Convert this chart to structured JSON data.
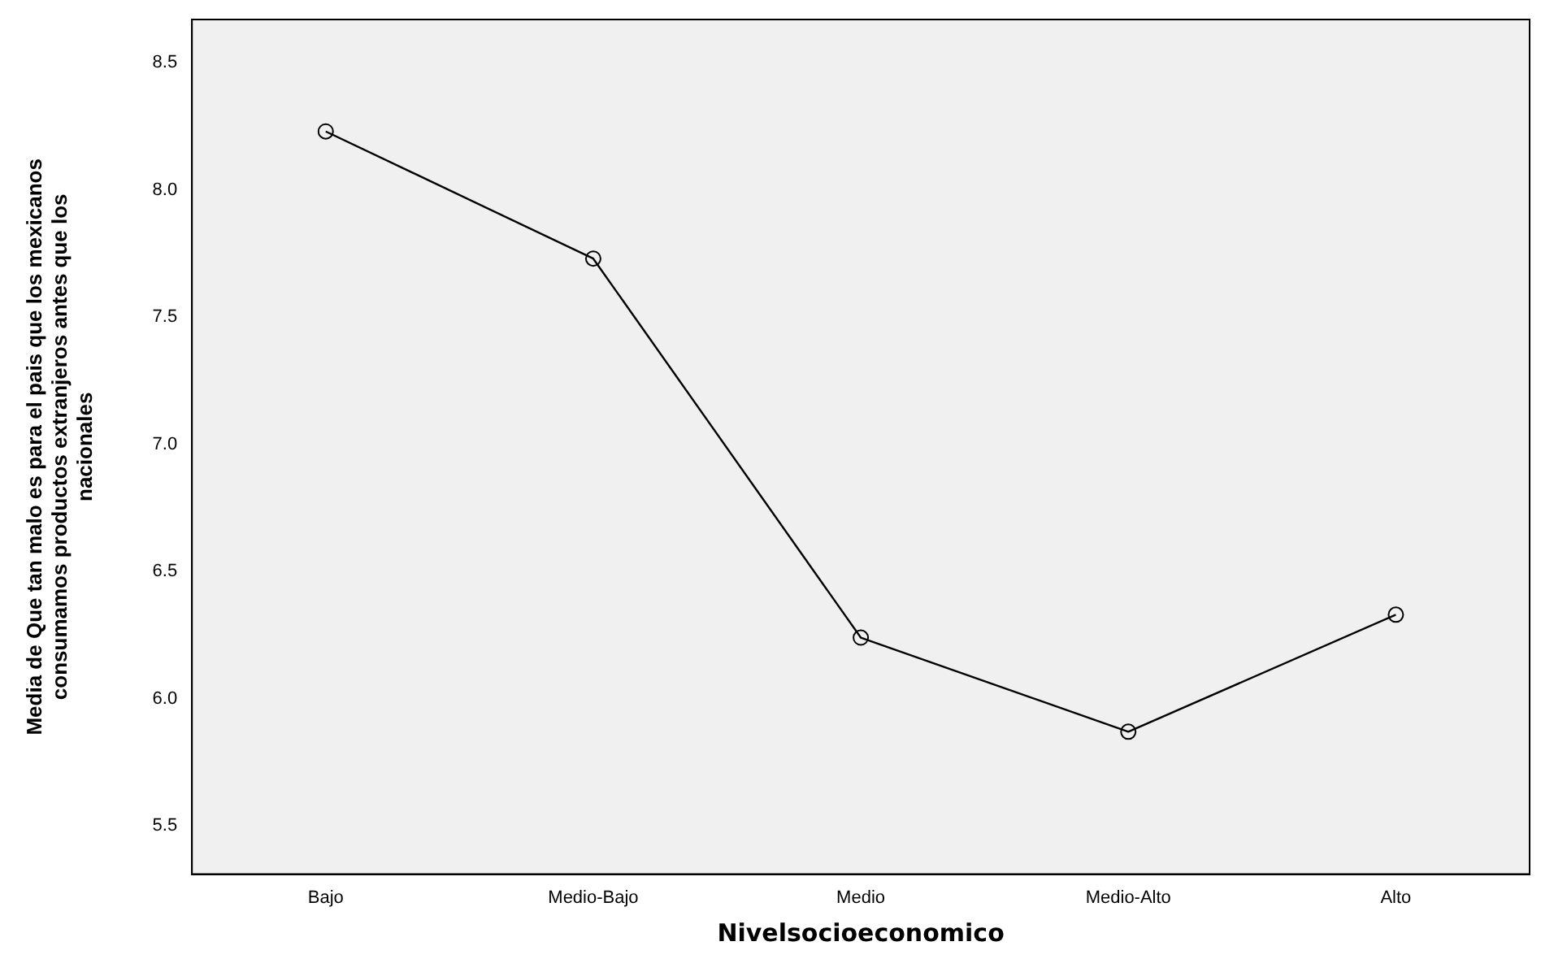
{
  "chart_data": {
    "type": "line",
    "xlabel": "Nivelsocioeconomico",
    "ylabel": "Media de Que tan malo es para el pais que los mexicanos consumamos productos extranjeros antes que los nacionales",
    "categories": [
      "Bajo",
      "Medio-Bajo",
      "Medio",
      "Medio-Alto",
      "Alto"
    ],
    "series": [
      {
        "color": "#000000",
        "values": [
          8.23,
          7.73,
          6.24,
          5.87,
          6.33
        ]
      }
    ],
    "ylim": [
      5.31,
      8.67
    ],
    "yticks": [
      5.5,
      {
        "value": 6,
        "label": "6.0"
      },
      6.5,
      {
        "value": 7,
        "label": "7.0"
      },
      7.5,
      {
        "value": 8,
        "label": "8.0"
      },
      8.5
    ],
    "grid": false,
    "legend": false,
    "marker": "circle",
    "line_style": "solid"
  }
}
